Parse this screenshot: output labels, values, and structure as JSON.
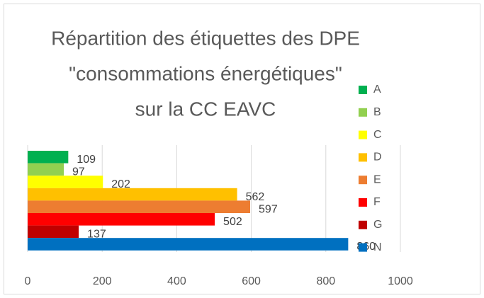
{
  "chart_data": {
    "type": "bar",
    "orientation": "horizontal",
    "title": [
      "Répartition des étiquettes des DPE",
      "\"consommations énergétiques\"",
      "sur la CC EAVC"
    ],
    "series": [
      {
        "name": "A",
        "color": "#00b050",
        "values": [
          109
        ]
      },
      {
        "name": "B",
        "color": "#92d050",
        "values": [
          97
        ]
      },
      {
        "name": "C",
        "color": "#ffff00",
        "values": [
          202
        ]
      },
      {
        "name": "D",
        "color": "#ffc000",
        "values": [
          562
        ]
      },
      {
        "name": "E",
        "color": "#ed7d31",
        "values": [
          597
        ]
      },
      {
        "name": "F",
        "color": "#ff0000",
        "values": [
          502
        ]
      },
      {
        "name": "G",
        "color": "#c00000",
        "values": [
          137
        ]
      },
      {
        "name": "N",
        "color": "#0070c0",
        "values": [
          860
        ]
      }
    ],
    "xlim": [
      0,
      1000
    ],
    "xticks": [
      0,
      200,
      400,
      600,
      800,
      1000
    ],
    "grid": true,
    "legend": "right"
  }
}
